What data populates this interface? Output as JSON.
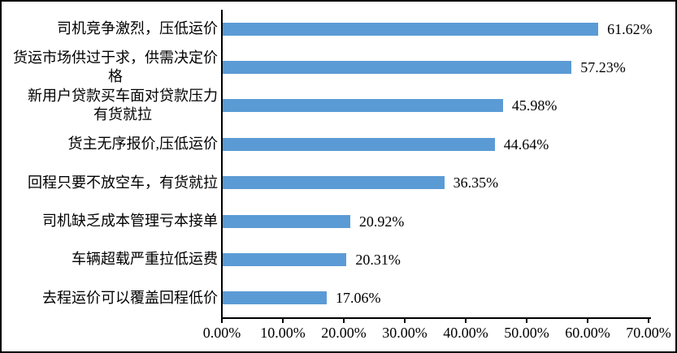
{
  "chart_data": {
    "type": "bar",
    "orientation": "horizontal",
    "title": "",
    "xlabel": "",
    "ylabel": "",
    "grid": false,
    "legend": false,
    "categories": [
      "司机竞争激烈，压低运价",
      "货运市场供过于求，供需决定价\n格",
      "新用户贷款买车面对贷款压力\n有货就拉",
      "货主无序报价,压低运价",
      "回程只要不放空车，有货就拉",
      "司机缺乏成本管理亏本接单",
      "车辆超载严重拉低运费",
      "去程运价可以覆盖回程低价"
    ],
    "values": [
      61.62,
      57.23,
      45.98,
      44.64,
      36.35,
      20.92,
      20.31,
      17.06
    ],
    "value_labels": [
      "61.62%",
      "57.23%",
      "45.98%",
      "44.64%",
      "36.35%",
      "20.92%",
      "20.31%",
      "17.06%"
    ],
    "xlim": [
      0,
      70
    ],
    "x_tick_labels": [
      "0.00%",
      "10.00%",
      "20.00%",
      "30.00%",
      "40.00%",
      "50.00%",
      "60.00%",
      "70.00%"
    ],
    "bar_color": "#5B9BD5",
    "axis_color": "#000000",
    "text_color": "#000000",
    "background_color": "#FFFFFF"
  }
}
